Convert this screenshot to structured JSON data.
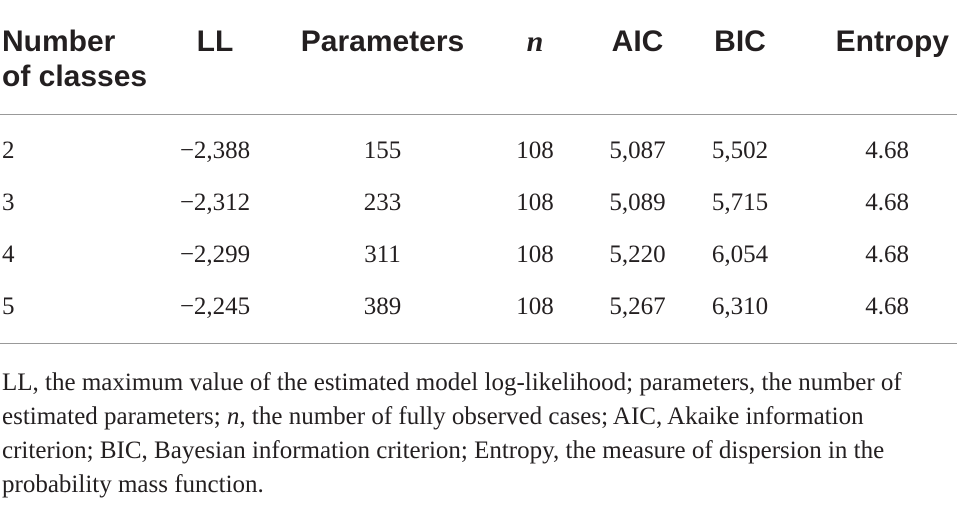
{
  "table": {
    "headers": {
      "classes_line1": "Number",
      "classes_line2": "of classes",
      "ll": "LL",
      "parameters": "Parameters",
      "n": "n",
      "aic": "AIC",
      "bic": "BIC",
      "entropy": "Entropy"
    },
    "rows": [
      {
        "classes": "2",
        "ll": "−2,388",
        "parameters": "155",
        "n": "108",
        "aic": "5,087",
        "bic": "5,502",
        "entropy": "4.68"
      },
      {
        "classes": "3",
        "ll": "−2,312",
        "parameters": "233",
        "n": "108",
        "aic": "5,089",
        "bic": "5,715",
        "entropy": "4.68"
      },
      {
        "classes": "4",
        "ll": "−2,299",
        "parameters": "311",
        "n": "108",
        "aic": "5,220",
        "bic": "6,054",
        "entropy": "4.68"
      },
      {
        "classes": "5",
        "ll": "−2,245",
        "parameters": "389",
        "n": "108",
        "aic": "5,267",
        "bic": "6,310",
        "entropy": "4.68"
      }
    ]
  },
  "footnote": {
    "part1": "LL, the maximum value of the estimated model log-likelihood; parameters, the number of estimated parameters; ",
    "n_symbol": "n",
    "part2": ", the number of fully observed cases; AIC, Akaike information criterion; BIC, Bayesian information criterion; Entropy, the measure of dispersion in the probability mass function."
  }
}
